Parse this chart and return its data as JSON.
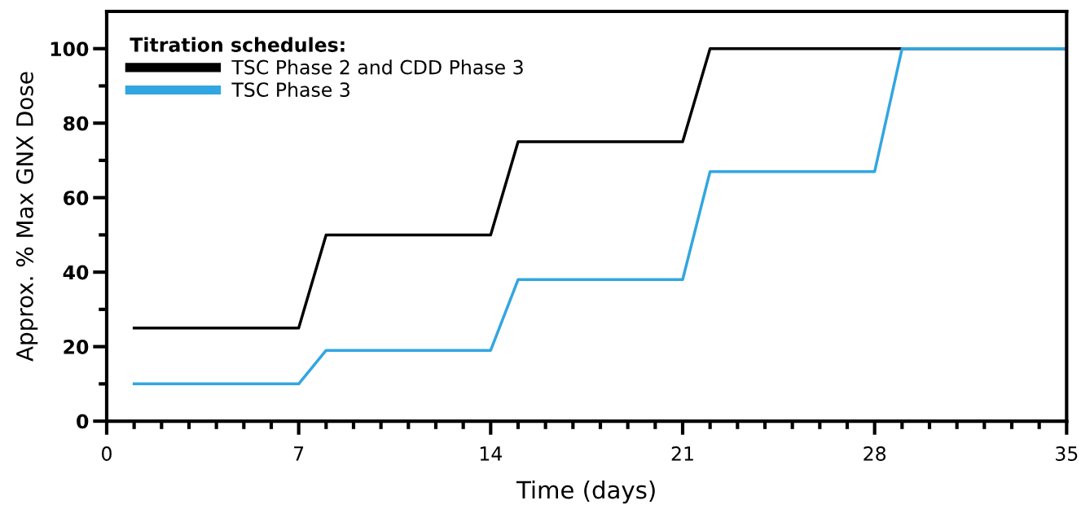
{
  "chart_data": {
    "type": "line",
    "xlabel": "Time (days)",
    "ylabel": "Approx. % Max GNX Dose",
    "legend_title": "Titration schedules:",
    "legend": "top left",
    "grid": false,
    "marker": "none",
    "line_style": "solid",
    "xlim": [
      0,
      35
    ],
    "ylim": [
      0,
      110
    ],
    "xticks": [
      0,
      {
        "value": 1,
        "label": null
      },
      {
        "value": 2,
        "label": null
      },
      {
        "value": 3,
        "label": null
      },
      {
        "value": 4,
        "label": null
      },
      {
        "value": 5,
        "label": null
      },
      {
        "value": 6,
        "label": null
      },
      7,
      {
        "value": 8,
        "label": null
      },
      {
        "value": 9,
        "label": null
      },
      {
        "value": 10,
        "label": null
      },
      {
        "value": 11,
        "label": null
      },
      {
        "value": 12,
        "label": null
      },
      {
        "value": 13,
        "label": null
      },
      14,
      {
        "value": 15,
        "label": null
      },
      {
        "value": 16,
        "label": null
      },
      {
        "value": 17,
        "label": null
      },
      {
        "value": 18,
        "label": null
      },
      {
        "value": 19,
        "label": null
      },
      {
        "value": 20,
        "label": null
      },
      21,
      {
        "value": 22,
        "label": null
      },
      {
        "value": 23,
        "label": null
      },
      {
        "value": 24,
        "label": null
      },
      {
        "value": 25,
        "label": null
      },
      {
        "value": 26,
        "label": null
      },
      {
        "value": 27,
        "label": null
      },
      28,
      {
        "value": 29,
        "label": null
      },
      {
        "value": 30,
        "label": null
      },
      {
        "value": 31,
        "label": null
      },
      {
        "value": 32,
        "label": null
      },
      {
        "value": 33,
        "label": null
      },
      {
        "value": 34,
        "label": null
      },
      35
    ],
    "yticks": [
      0,
      {
        "value": 10,
        "label": null
      },
      20,
      {
        "value": 30,
        "label": null
      },
      40,
      {
        "value": 50,
        "label": null
      },
      60,
      {
        "value": 70,
        "label": null
      },
      80,
      {
        "value": 90,
        "label": null
      },
      100
    ],
    "series": [
      {
        "name": "TSC Phase 2 and CDD Phase 3",
        "color": "#000000",
        "x": [
          1,
          7,
          8,
          14,
          15,
          21,
          22,
          35
        ],
        "values": [
          25,
          25,
          50,
          50,
          75,
          75,
          100,
          100
        ]
      },
      {
        "name": "TSC Phase 3",
        "color": "#32a6e0",
        "x": [
          1,
          7,
          8,
          14,
          15,
          21,
          22,
          28,
          29,
          35
        ],
        "values": [
          10,
          10,
          19,
          19,
          38,
          38,
          67,
          67,
          100,
          100
        ]
      }
    ]
  }
}
